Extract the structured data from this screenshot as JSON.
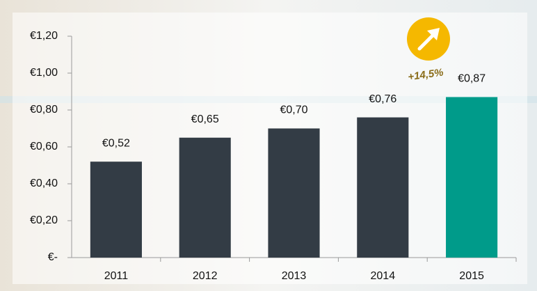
{
  "chart_data": {
    "type": "bar",
    "categories": [
      "2011",
      "2012",
      "2013",
      "2014",
      "2015"
    ],
    "values": [
      0.52,
      0.65,
      0.7,
      0.76,
      0.87
    ],
    "value_labels": [
      "€0,52",
      "€0,65",
      "€0,70",
      "€0,76",
      "€0,87"
    ],
    "colors": [
      "#333c45",
      "#333c45",
      "#333c45",
      "#333c45",
      "#009b8a"
    ],
    "ylim": [
      0,
      1.2
    ],
    "yticks": [
      {
        "value": 0,
        "label": "€-"
      },
      {
        "value": 0.2,
        "label": "€0,20"
      },
      {
        "value": 0.4,
        "label": "€0,40"
      },
      {
        "value": 0.6,
        "label": "€0,60"
      },
      {
        "value": 0.8,
        "label": "€0,80"
      },
      {
        "value": 1.0,
        "label": "€1,00"
      },
      {
        "value": 1.2,
        "label": "€1,20"
      }
    ],
    "grid": false,
    "annotation": "+14,5%"
  }
}
